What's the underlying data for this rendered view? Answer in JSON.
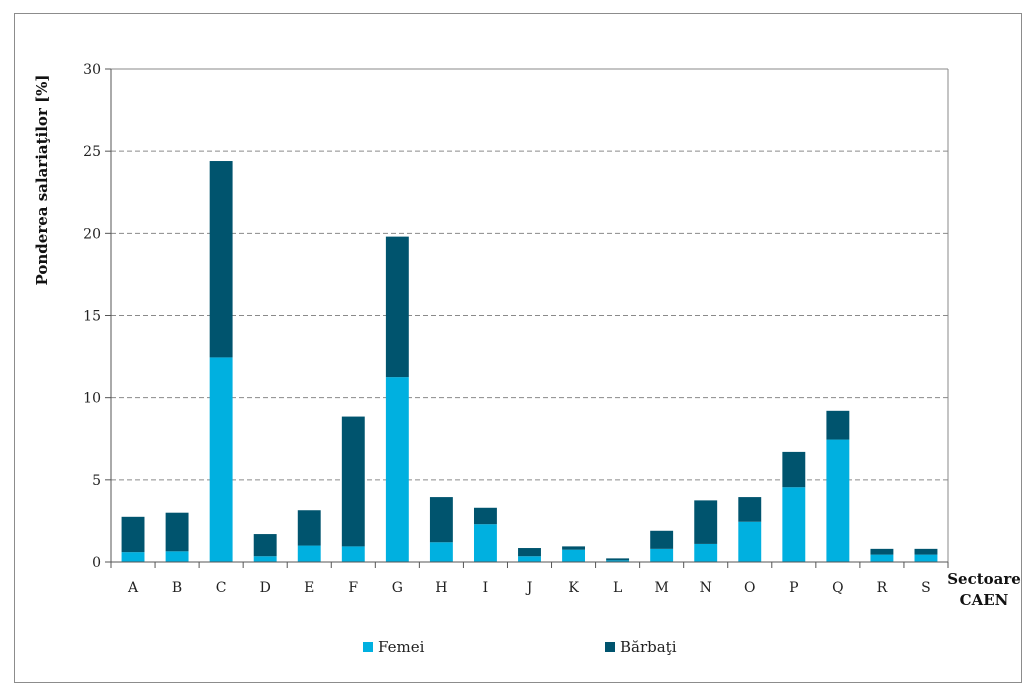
{
  "chart_data": {
    "type": "bar",
    "stacked": true,
    "title": "",
    "ylabel": "Ponderea salariaţilor [%]",
    "xlabel": "Sectoare CAEN",
    "xlabel_lines": [
      "Sectoare",
      "CAEN"
    ],
    "ylim": [
      0,
      30
    ],
    "yticks": [
      0,
      5,
      10,
      15,
      20,
      25,
      30
    ],
    "grid": true,
    "legend_position": "bottom",
    "categories": [
      "A",
      "B",
      "C",
      "D",
      "E",
      "F",
      "G",
      "H",
      "I",
      "J",
      "K",
      "L",
      "M",
      "N",
      "O",
      "P",
      "Q",
      "R",
      "S"
    ],
    "series": [
      {
        "name": "Femei",
        "color": "#00b0e0",
        "values": [
          0.6,
          0.65,
          12.45,
          0.35,
          1.0,
          0.95,
          11.25,
          1.2,
          2.3,
          0.35,
          0.75,
          0.1,
          0.8,
          1.1,
          2.45,
          4.55,
          7.45,
          0.45,
          0.45
        ]
      },
      {
        "name": "Bărbaţi",
        "color": "#00546e",
        "values": [
          2.15,
          2.35,
          11.95,
          1.35,
          2.15,
          7.9,
          8.55,
          2.75,
          1.0,
          0.5,
          0.2,
          0.12,
          1.1,
          2.65,
          1.5,
          2.15,
          1.75,
          0.35,
          0.35
        ]
      }
    ]
  }
}
